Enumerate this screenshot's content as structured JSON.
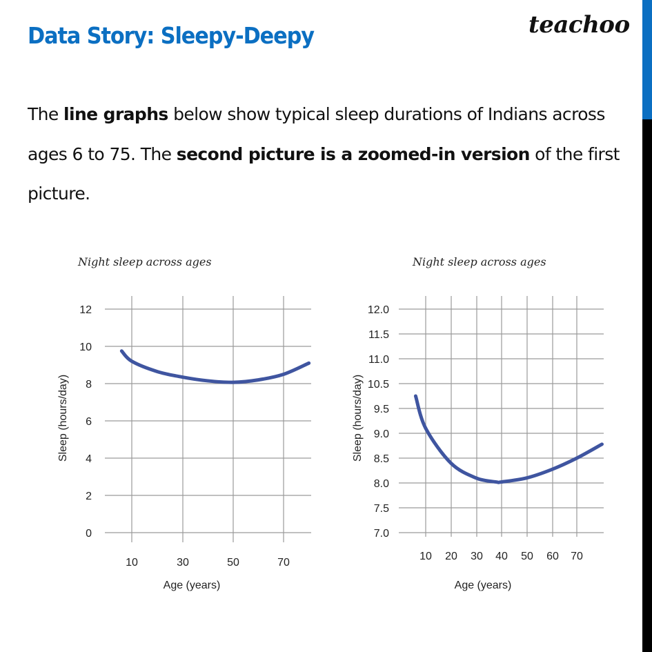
{
  "header": {
    "title": "Data Story: Sleepy-Deepy",
    "logo": "teachoo",
    "title_color": "#0b6fc2",
    "accent_bar_color": "#0b6fc2"
  },
  "paragraph": {
    "p1": "The ",
    "b1": "line graphs",
    "p2": " below show typical sleep durations of Indians across ages 6 to 75. The ",
    "b2": "second picture is a zoomed-in version",
    "p3": " of the first picture."
  },
  "charts": {
    "line_color": "#3f55a0",
    "left": {
      "title": "Night sleep across ages",
      "xlabel": "Age (years)",
      "ylabel": "Sleep (hours/day)",
      "yticks": [
        "12",
        "10",
        "8",
        "6",
        "4",
        "2",
        "0"
      ],
      "xticks": [
        "10",
        "30",
        "50",
        "70"
      ]
    },
    "right": {
      "title": "Night sleep across ages",
      "xlabel": "Age (years)",
      "ylabel": "Sleep (hours/day)",
      "yticks": [
        "12.0",
        "11.5",
        "11.0",
        "10.5",
        "9.5",
        "9.0",
        "8.5",
        "8.0",
        "7.5",
        "7.0"
      ],
      "xticks": [
        "10",
        "20",
        "30",
        "40",
        "50",
        "60",
        "70"
      ]
    }
  },
  "chart_data": [
    {
      "type": "line",
      "title": "Night sleep across ages",
      "xlabel": "Age (years)",
      "ylabel": "Sleep (hours/day)",
      "ylim": [
        0,
        12
      ],
      "xlim": [
        0,
        80
      ],
      "grid": true,
      "y_tick_labels": [
        "0",
        "2",
        "4",
        "6",
        "8",
        "10",
        "12"
      ],
      "x_tick_labels": [
        "10",
        "30",
        "50",
        "70"
      ],
      "series": [
        {
          "name": "Night sleep",
          "x": [
            6,
            10,
            20,
            30,
            40,
            50,
            60,
            70,
            80
          ],
          "y": [
            9.75,
            9.2,
            8.65,
            8.35,
            8.15,
            8.07,
            8.2,
            8.5,
            9.1
          ]
        }
      ]
    },
    {
      "type": "line",
      "title": "Night sleep across ages",
      "subtitle": "Zoomed-in version",
      "xlabel": "Age (years)",
      "ylabel": "Sleep (hours/day)",
      "ylim": [
        7.0,
        12.0
      ],
      "xlim": [
        0,
        80
      ],
      "grid": true,
      "y_tick_labels": [
        "7.0",
        "7.5",
        "8.0",
        "8.5",
        "9.0",
        "9.5",
        "10.5",
        "11.0",
        "11.5",
        "12.0"
      ],
      "x_tick_labels": [
        "10",
        "20",
        "30",
        "40",
        "50",
        "60",
        "70"
      ],
      "series": [
        {
          "name": "Night sleep",
          "x": [
            6,
            10,
            20,
            30,
            38,
            40,
            50,
            60,
            70,
            80
          ],
          "y": [
            9.75,
            9.1,
            8.4,
            8.1,
            8.02,
            8.02,
            8.1,
            8.27,
            8.5,
            8.78
          ]
        }
      ]
    }
  ]
}
